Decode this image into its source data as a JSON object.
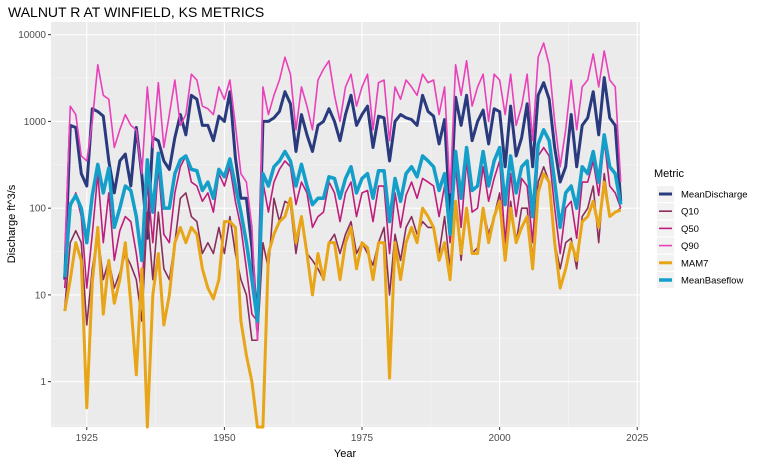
{
  "chart_data": {
    "type": "line",
    "title": "WALNUT R AT WINFIELD, KS  METRICS",
    "xlabel": "Year",
    "ylabel": "Discharge ft^3/s",
    "xlim": [
      1918.5,
      2025.5
    ],
    "ylim": [
      0.3,
      14000
    ],
    "y_scale": "log",
    "x_ticks": [
      1925,
      1950,
      1975,
      2000,
      2025
    ],
    "y_ticks": [
      1,
      10,
      100,
      1000,
      10000
    ],
    "x_tick_labels": [
      "1925",
      "1950",
      "1975",
      "2000",
      "2025"
    ],
    "y_tick_labels": [
      "1",
      "10",
      "100",
      "1000",
      "10000"
    ],
    "grid": true,
    "legend": {
      "title": "Metric",
      "position": "right",
      "entries": [
        {
          "name": "MeanDischarge",
          "color": "#2a3a7e",
          "width": 3
        },
        {
          "name": "Q10",
          "color": "#8a2f5c",
          "width": 1.6
        },
        {
          "name": "Q50",
          "color": "#c01c7c",
          "width": 1.6
        },
        {
          "name": "Q90",
          "color": "#ea40ba",
          "width": 1.6
        },
        {
          "name": "MAM7",
          "color": "#e8a517",
          "width": 3
        },
        {
          "name": "MeanBaseflow",
          "color": "#149fca",
          "width": 3.5
        }
      ]
    },
    "x": [
      1921,
      1922,
      1923,
      1924,
      1925,
      1926,
      1927,
      1928,
      1929,
      1930,
      1931,
      1932,
      1933,
      1934,
      1935,
      1936,
      1937,
      1938,
      1939,
      1940,
      1941,
      1942,
      1943,
      1944,
      1945,
      1946,
      1947,
      1948,
      1949,
      1950,
      1951,
      1952,
      1953,
      1954,
      1955,
      1956,
      1957,
      1958,
      1959,
      1960,
      1961,
      1962,
      1963,
      1964,
      1965,
      1966,
      1967,
      1968,
      1969,
      1970,
      1971,
      1972,
      1973,
      1974,
      1975,
      1976,
      1977,
      1978,
      1979,
      1980,
      1981,
      1982,
      1983,
      1984,
      1985,
      1986,
      1987,
      1988,
      1989,
      1990,
      1991,
      1992,
      1993,
      1994,
      1995,
      1996,
      1997,
      1998,
      1999,
      2000,
      2001,
      2002,
      2003,
      2004,
      2005,
      2006,
      2007,
      2008,
      2009,
      2010,
      2011,
      2012,
      2013,
      2014,
      2015,
      2016,
      2017,
      2018,
      2019,
      2020,
      2021,
      2022
    ],
    "series": [
      {
        "name": "MeanDischarge",
        "values": [
          15,
          900,
          850,
          250,
          180,
          1400,
          1300,
          1150,
          350,
          150,
          350,
          420,
          180,
          850,
          240,
          45,
          650,
          600,
          350,
          280,
          650,
          1200,
          700,
          2000,
          1800,
          900,
          900,
          600,
          1150,
          1000,
          2200,
          380,
          130,
          130,
          35,
          4,
          1000,
          1000,
          1100,
          1300,
          2200,
          1600,
          450,
          1200,
          700,
          450,
          900,
          1000,
          1400,
          1000,
          600,
          1200,
          2000,
          900,
          1200,
          1500,
          500,
          1150,
          1100,
          350,
          1000,
          1200,
          1100,
          1050,
          900,
          2000,
          1300,
          1150,
          550,
          1050,
          80,
          1900,
          900,
          2000,
          600,
          1000,
          1350,
          550,
          1400,
          1300,
          300,
          1500,
          400,
          650,
          1600,
          300,
          2000,
          2800,
          1800,
          500,
          200,
          300,
          1200,
          300,
          900,
          1100,
          2200,
          700,
          3200,
          1100,
          900,
          120
        ]
      },
      {
        "name": "Q10",
        "values": [
          7,
          40,
          55,
          40,
          4.5,
          20,
          50,
          15,
          25,
          12,
          18,
          30,
          22,
          15,
          5,
          90,
          15,
          90,
          20,
          15,
          40,
          130,
          150,
          80,
          70,
          30,
          40,
          30,
          60,
          30,
          80,
          30,
          15,
          10,
          3,
          3,
          40,
          20,
          130,
          70,
          120,
          110,
          30,
          80,
          30,
          25,
          20,
          15,
          40,
          50,
          30,
          50,
          70,
          30,
          40,
          30,
          22,
          40,
          60,
          10,
          50,
          25,
          60,
          80,
          50,
          70,
          60,
          60,
          30,
          80,
          20,
          110,
          25,
          100,
          30,
          35,
          100,
          50,
          80,
          150,
          30,
          120,
          40,
          100,
          100,
          25,
          200,
          300,
          200,
          40,
          20,
          40,
          45,
          20,
          80,
          100,
          180,
          40,
          250,
          80,
          90,
          100
        ]
      },
      {
        "name": "Q50",
        "values": [
          12,
          100,
          150,
          80,
          12,
          50,
          250,
          40,
          150,
          25,
          55,
          80,
          70,
          30,
          10,
          200,
          40,
          300,
          50,
          40,
          150,
          300,
          400,
          200,
          180,
          120,
          150,
          90,
          250,
          180,
          300,
          120,
          60,
          20,
          6,
          5,
          200,
          90,
          200,
          280,
          350,
          300,
          110,
          200,
          150,
          60,
          80,
          90,
          200,
          150,
          70,
          150,
          200,
          80,
          150,
          160,
          70,
          180,
          180,
          30,
          150,
          60,
          140,
          200,
          130,
          220,
          200,
          180,
          80,
          180,
          40,
          300,
          60,
          350,
          90,
          100,
          300,
          120,
          220,
          350,
          40,
          250,
          80,
          220,
          180,
          40,
          400,
          500,
          400,
          100,
          30,
          100,
          120,
          45,
          200,
          200,
          350,
          140,
          600,
          180,
          150,
          100
        ]
      },
      {
        "name": "Q90",
        "values": [
          30,
          1500,
          1200,
          400,
          350,
          1000,
          4500,
          2000,
          1800,
          500,
          800,
          1200,
          900,
          800,
          250,
          2500,
          500,
          2800,
          500,
          1200,
          3000,
          900,
          1200,
          3500,
          3000,
          1500,
          1400,
          1200,
          2500,
          1800,
          3000,
          900,
          250,
          200,
          60,
          3,
          2500,
          1200,
          2000,
          3000,
          5500,
          3500,
          800,
          2500,
          1500,
          800,
          3000,
          4000,
          5000,
          2000,
          1000,
          2500,
          3500,
          1500,
          2500,
          3500,
          800,
          2800,
          3000,
          600,
          2500,
          1800,
          3000,
          2500,
          2000,
          3500,
          2800,
          3000,
          1200,
          2500,
          150,
          4500,
          2000,
          5000,
          1500,
          2500,
          3500,
          1000,
          3500,
          3000,
          1200,
          3500,
          900,
          1500,
          3500,
          600,
          5500,
          8000,
          4500,
          1000,
          300,
          800,
          3000,
          800,
          2500,
          3000,
          6000,
          2500,
          6500,
          3000,
          2500,
          200
        ]
      },
      {
        "name": "MAM7",
        "values": [
          6.5,
          15,
          40,
          25,
          0.5,
          14,
          60,
          6,
          25,
          8,
          15,
          40,
          8,
          1.2,
          20,
          0.25,
          10,
          30,
          4.5,
          10,
          40,
          60,
          40,
          60,
          50,
          20,
          12,
          9,
          15,
          70,
          70,
          60,
          5,
          2,
          1,
          0.3,
          0.3,
          30,
          50,
          70,
          80,
          130,
          40,
          80,
          30,
          10,
          30,
          15,
          40,
          40,
          15,
          40,
          60,
          20,
          40,
          35,
          15,
          40,
          40,
          1.1,
          40,
          15,
          40,
          60,
          40,
          100,
          80,
          60,
          25,
          40,
          15,
          120,
          30,
          100,
          30,
          30,
          100,
          40,
          80,
          120,
          25,
          100,
          40,
          60,
          80,
          20,
          150,
          250,
          200,
          40,
          12,
          20,
          40,
          25,
          70,
          80,
          120,
          60,
          200,
          80,
          90,
          95
        ]
      },
      {
        "name": "MeanBaseflow",
        "values": [
          16,
          110,
          140,
          100,
          40,
          140,
          320,
          150,
          290,
          60,
          100,
          180,
          160,
          80,
          25,
          360,
          90,
          430,
          100,
          100,
          250,
          360,
          400,
          280,
          270,
          160,
          200,
          130,
          280,
          230,
          370,
          180,
          90,
          40,
          15,
          5,
          250,
          180,
          300,
          350,
          450,
          350,
          180,
          320,
          180,
          110,
          130,
          130,
          230,
          220,
          130,
          220,
          300,
          150,
          220,
          250,
          130,
          270,
          270,
          70,
          220,
          120,
          250,
          300,
          230,
          400,
          350,
          300,
          160,
          250,
          50,
          450,
          130,
          500,
          160,
          180,
          450,
          180,
          350,
          500,
          110,
          400,
          150,
          300,
          350,
          80,
          550,
          800,
          600,
          200,
          60,
          150,
          180,
          100,
          300,
          250,
          450,
          200,
          700,
          300,
          250,
          110
        ]
      }
    ]
  }
}
